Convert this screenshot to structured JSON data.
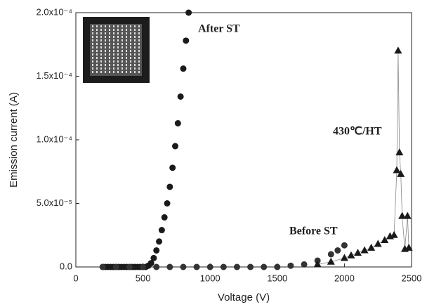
{
  "chart_data": {
    "type": "scatter",
    "xlabel": "Voltage (V)",
    "ylabel": "Emission current (A)",
    "xlim": [
      0,
      2500
    ],
    "xticks": [
      0,
      500,
      1000,
      1500,
      2000,
      2500
    ],
    "ylim": [
      0,
      0.0002
    ],
    "yticks": [
      {
        "value": 0,
        "label": "0.0"
      },
      {
        "value": 5e-05,
        "label": "5.0x10⁻⁵"
      },
      {
        "value": 0.0001,
        "label": "1.0x10⁻⁴"
      },
      {
        "value": 0.00015,
        "label": "1.5x10⁻⁴"
      },
      {
        "value": 0.0002,
        "label": "2.0x10⁻⁴"
      }
    ],
    "series": [
      {
        "name": "After ST",
        "color": "#1a1a1a",
        "marker": "circle",
        "x": [
          200,
          220,
          240,
          260,
          280,
          300,
          320,
          340,
          360,
          380,
          400,
          420,
          440,
          460,
          480,
          500,
          520,
          540,
          560,
          580,
          600,
          620,
          640,
          660,
          680,
          700,
          720,
          740,
          760,
          780,
          800,
          820,
          840
        ],
        "values": [
          0,
          0,
          0,
          0,
          0,
          0,
          0,
          0,
          0,
          0,
          0,
          0,
          0,
          0,
          0,
          0,
          0,
          1e-06,
          3e-06,
          7e-06,
          1.3e-05,
          2e-05,
          2.9e-05,
          3.9e-05,
          5e-05,
          6.3e-05,
          7.8e-05,
          9.5e-05,
          0.000113,
          0.000134,
          0.000156,
          0.000178,
          0.0002
        ]
      },
      {
        "name": "Before ST",
        "color": "#333333",
        "marker": "circle",
        "x": [
          200,
          300,
          400,
          500,
          600,
          700,
          800,
          900,
          1000,
          1100,
          1200,
          1300,
          1400,
          1500,
          1600,
          1700,
          1800,
          1900,
          1950,
          2000
        ],
        "values": [
          0,
          0,
          0,
          0,
          0,
          0,
          0,
          0,
          0,
          0,
          0,
          0,
          0,
          0,
          1e-06,
          2e-06,
          5e-06,
          1e-05,
          1.3e-05,
          1.7e-05
        ]
      },
      {
        "name": "430℃/HT",
        "color": "#1a1a1a",
        "marker": "triangle",
        "x": [
          1800,
          1900,
          2000,
          2050,
          2100,
          2150,
          2200,
          2250,
          2300,
          2340,
          2370,
          2390,
          2400,
          2410,
          2420,
          2430,
          2450,
          2470,
          2480
        ],
        "values": [
          2e-06,
          4e-06,
          7e-06,
          9e-06,
          1.1e-05,
          1.3e-05,
          1.5e-05,
          1.8e-05,
          2.1e-05,
          2.4e-05,
          2.5e-05,
          7.6e-05,
          0.00017,
          9e-05,
          7.3e-05,
          4e-05,
          1.4e-05,
          4e-05,
          1.5e-05
        ]
      }
    ]
  }
}
